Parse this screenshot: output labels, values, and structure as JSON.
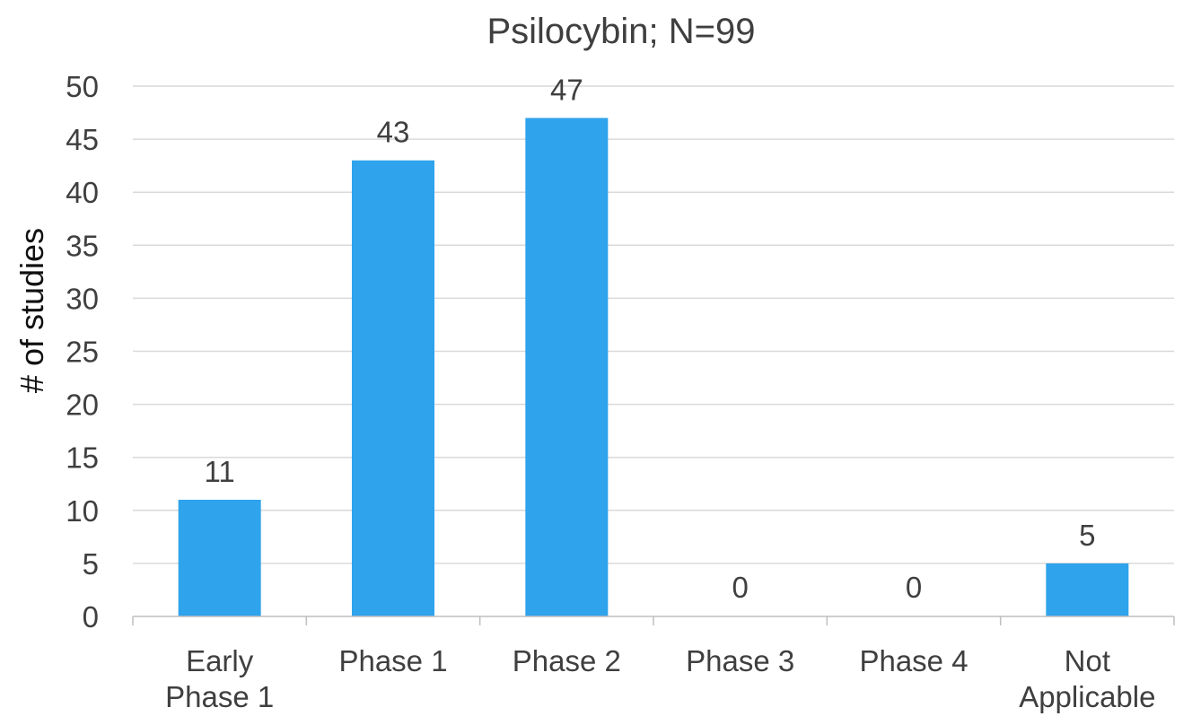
{
  "chart_data": {
    "type": "bar",
    "title": "Psilocybin; N=99",
    "xlabel": "",
    "ylabel": "# of studies",
    "categories": [
      [
        "Early",
        "Phase 1"
      ],
      [
        "Phase 1"
      ],
      [
        "Phase 2"
      ],
      [
        "Phase 3"
      ],
      [
        "Phase 4"
      ],
      [
        "Not",
        "Applicable"
      ]
    ],
    "values": [
      11,
      43,
      47,
      0,
      0,
      5
    ],
    "data_labels": [
      "11",
      "43",
      "47",
      "0",
      "0",
      "5"
    ],
    "ylim": [
      0,
      50
    ],
    "y_ticks": [
      0,
      5,
      10,
      15,
      20,
      25,
      30,
      35,
      40,
      45,
      50
    ],
    "grid": true,
    "legend": "none",
    "colors": {
      "bar": "#2fa3ec",
      "grid": "#d9d9d9",
      "axis": "#bfbfbf"
    }
  }
}
